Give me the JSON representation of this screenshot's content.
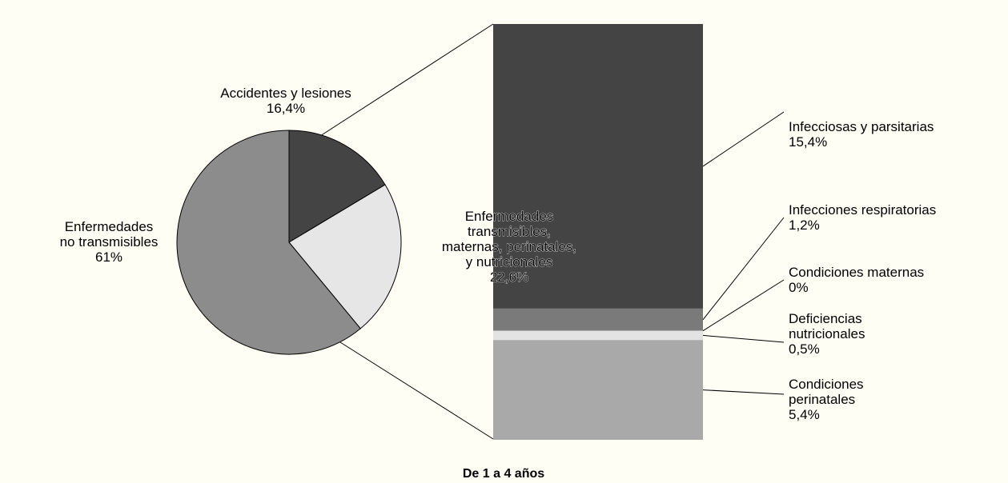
{
  "chart_data": {
    "type": "pie",
    "title": "De 1 a 4 años",
    "categories": [
      "Accidentes y lesiones",
      "Enfermedades\ntransmisibles,\nmaternas, perinatales,\ny nutricionales",
      "Enfermedades\nno transmisibles"
    ],
    "values": [
      16.4,
      22.6,
      61
    ],
    "value_labels": [
      "16,4%",
      "22,6%",
      "61%"
    ],
    "colors": [
      "#444444",
      "#e6e6e6",
      "#8c8c8c"
    ],
    "bar": {
      "type": "bar",
      "categories": [
        "Infecciosas y parsitarias",
        "Infecciones respiratorias",
        "Condiciones maternas",
        "Deficiencias\nnutricionales",
        "Condiciones\nperinatales"
      ],
      "values": [
        15.4,
        1.2,
        0,
        0.5,
        5.4
      ],
      "value_labels": [
        "15,4%",
        "1,2%",
        "0%",
        "0,5%",
        "5,4%"
      ],
      "colors": [
        "#444444",
        "#7a7a7a",
        "#bdbdbd",
        "#e3e3e3",
        "#a9a9a9"
      ]
    }
  }
}
